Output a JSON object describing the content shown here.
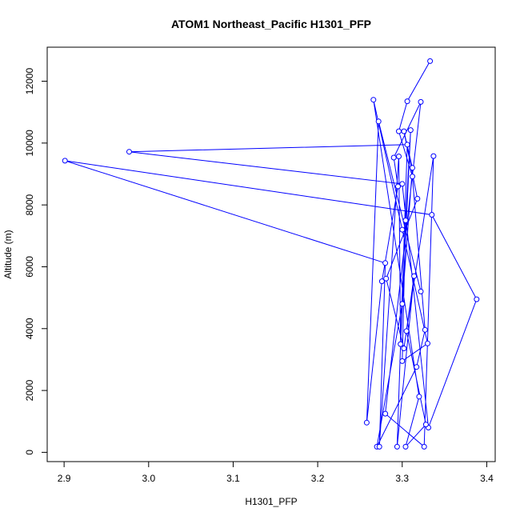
{
  "chart_data": {
    "type": "line",
    "title": "ATOM1 Northeast_Pacific H1301_PFP",
    "xlabel": "H1301_PFP",
    "ylabel": "Altitude (m)",
    "xlim": [
      2.88,
      3.41
    ],
    "ylim": [
      -300,
      13100
    ],
    "xticks": [
      2.9,
      3.0,
      3.1,
      3.2,
      3.3,
      3.4
    ],
    "xtick_labels": [
      "2.9",
      "3.0",
      "3.1",
      "3.2",
      "3.3",
      "3.4"
    ],
    "yticks": [
      0,
      2000,
      4000,
      6000,
      8000,
      10000,
      12000
    ],
    "ytick_labels": [
      "0",
      "2000",
      "4000",
      "6000",
      "8000",
      "10000",
      "12000"
    ],
    "grid": false,
    "color": "#0000ff",
    "series": [
      {
        "markers": "open-circle",
        "points": [
          [
            3.333,
            12650
          ],
          [
            3.306,
            11350
          ],
          [
            3.296,
            10380
          ],
          [
            3.312,
            8920
          ],
          [
            3.327,
            3960
          ],
          [
            3.317,
            2760
          ],
          [
            3.27,
            180
          ],
          [
            3.3,
            4800
          ],
          [
            3.312,
            9200
          ],
          [
            3.302,
            10380
          ],
          [
            3.318,
            8200
          ],
          [
            3.281,
            5620
          ],
          [
            3.302,
            3360
          ],
          [
            3.314,
            5700
          ],
          [
            3.294,
            180
          ],
          [
            3.306,
            9950
          ],
          [
            2.977,
            9720
          ],
          [
            3.3,
            8680
          ],
          [
            3.331,
            800
          ],
          [
            3.388,
            4950
          ],
          [
            3.335,
            7680
          ],
          [
            2.901,
            9430
          ],
          [
            3.28,
            6120
          ],
          [
            3.273,
            180
          ],
          [
            3.296,
            9570
          ],
          [
            3.298,
            3500
          ],
          [
            3.31,
            10420
          ],
          [
            3.304,
            7500
          ],
          [
            3.3,
            2950
          ],
          [
            3.33,
            3520
          ],
          [
            3.3,
            7200
          ],
          [
            3.266,
            11400
          ],
          [
            3.32,
            1800
          ],
          [
            3.304,
            180
          ],
          [
            3.328,
            900
          ],
          [
            3.305,
            3920
          ],
          [
            3.337,
            9580
          ],
          [
            3.326,
            180
          ],
          [
            3.28,
            1250
          ],
          [
            3.322,
            11330
          ],
          [
            3.29,
            9530
          ],
          [
            3.295,
            8600
          ],
          [
            3.276,
            5530
          ],
          [
            3.258,
            960
          ],
          [
            3.272,
            10700
          ],
          [
            3.322,
            5200
          ]
        ]
      }
    ]
  }
}
